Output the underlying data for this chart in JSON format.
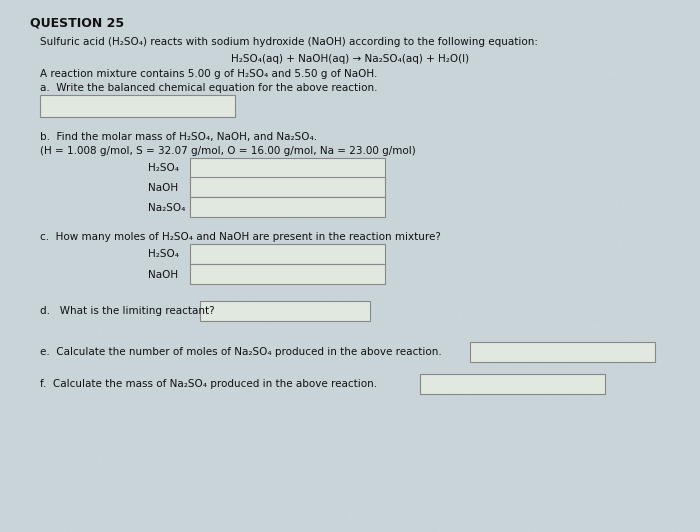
{
  "title": "QUESTION 25",
  "bg_color": "#c8d4d8",
  "text_color": "#111111",
  "line1": "Sulfuric acid (H₂SO₄) reacts with sodium hydroxide (NaOH) according to the following equation:",
  "line2": "H₂SO₄(aq) + NaOH(aq) → Na₂SO₄(aq) + H₂O(l)",
  "line3": "A reaction mixture contains 5.00 g of H₂SO₄ and 5.50 g of NaOH.",
  "line_a": "a.  Write the balanced chemical equation for the above reaction.",
  "line_b": "b.  Find the molar mass of H₂SO₄, NaOH, and Na₂SO₄.",
  "line_b2": "(H = 1.008 g/mol, S = 32.07 g/mol, O = 16.00 g/mol, Na = 23.00 g/mol)",
  "line_c": "c.  How many moles of H₂SO₄ and NaOH are present in the reaction mixture?",
  "line_d": "d.   What is the limiting reactant?",
  "line_e": "e.  Calculate the number of moles of Na₂SO₄ produced in the above reaction.",
  "line_f": "f.  Calculate the mass of Na₂SO₄ produced in the above reaction.",
  "box_fill": "#e0e8e0",
  "box_edge": "#888888",
  "title_fontsize": 9,
  "text_fontsize": 7.5
}
